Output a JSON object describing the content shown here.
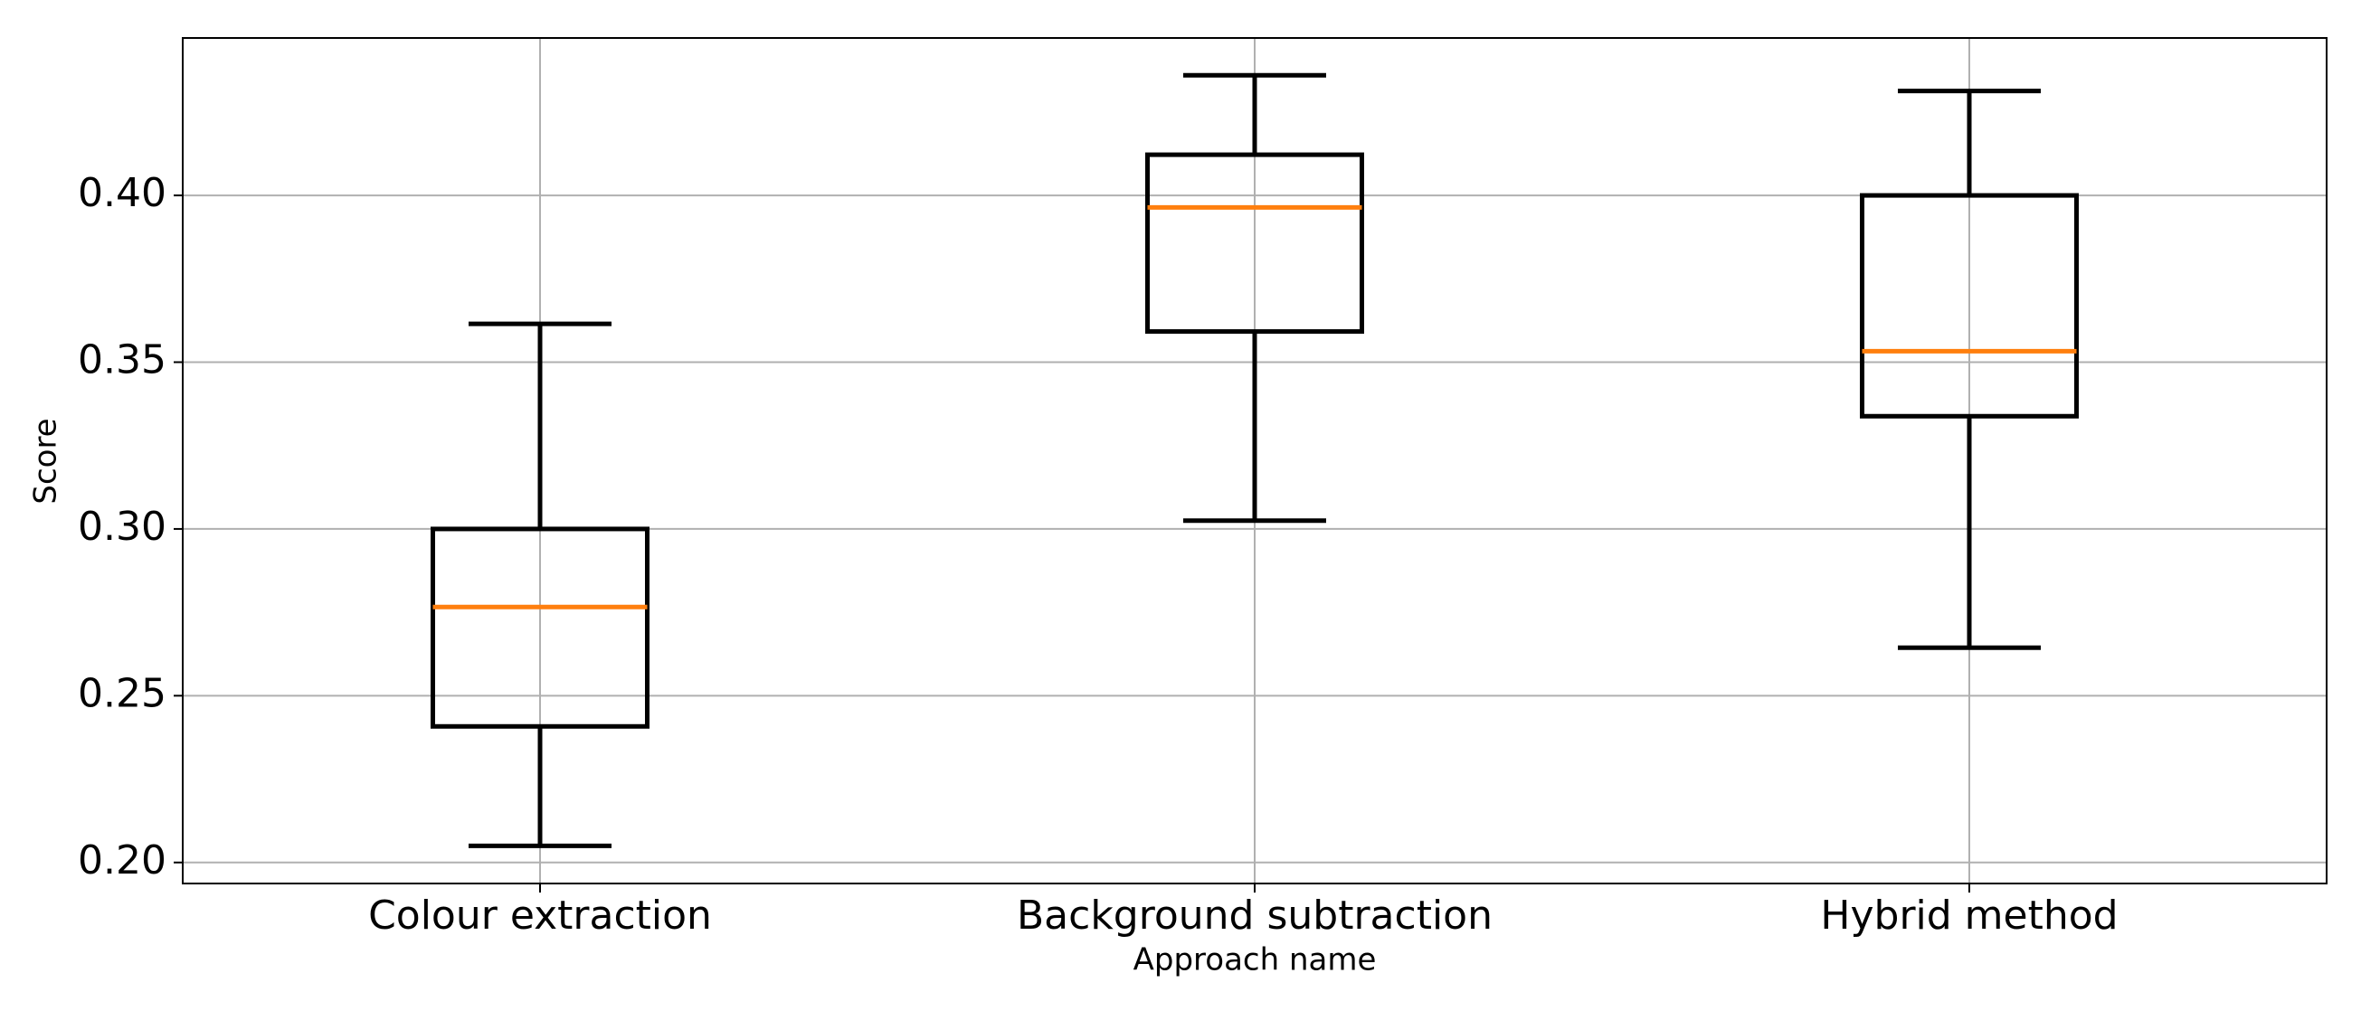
{
  "chart_data": {
    "type": "box",
    "x_label": "Approach name",
    "y_label": "Score",
    "categories": [
      "Colour extraction",
      "Background subtraction",
      "Hybrid method"
    ],
    "whislo": [
      0.205,
      0.3025,
      0.2644
    ],
    "q1": [
      0.2408,
      0.3592,
      0.3338
    ],
    "med": [
      0.2766,
      0.3964,
      0.3533
    ],
    "q3": [
      0.3,
      0.4122,
      0.4
    ],
    "whishi": [
      0.3615,
      0.436,
      0.4313
    ],
    "color": "#000000",
    "median_color": "#ff7f0e",
    "ylim": [
      0.1937,
      0.4472
    ],
    "yticks": [
      {
        "value": 0.2,
        "label": "0.20"
      },
      0.25,
      {
        "value": 0.3,
        "label": "0.30"
      },
      0.35,
      {
        "value": 0.4,
        "label": "0.40"
      }
    ],
    "grid": true
  }
}
